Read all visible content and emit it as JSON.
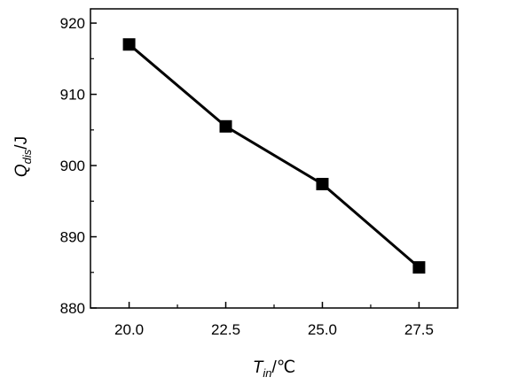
{
  "chart_data": {
    "type": "line",
    "x": [
      20.0,
      22.5,
      25.0,
      27.5
    ],
    "series": [
      {
        "values": [
          917.0,
          905.5,
          897.4,
          885.7
        ],
        "color": "#000000",
        "marker": "square"
      }
    ],
    "xlabel": {
      "main": "T",
      "sub": "in",
      "unit": "/℃"
    },
    "ylabel": {
      "main": "Q",
      "sub": "dis",
      "unit": "/J"
    },
    "xlim": [
      19.0,
      28.5
    ],
    "ylim": [
      880,
      922
    ],
    "xticks": [
      {
        "value": 20.0,
        "label": "20.0"
      },
      {
        "value": 22.5,
        "label": "22.5"
      },
      {
        "value": 25.0,
        "label": "25.0"
      },
      {
        "value": 27.5,
        "label": "27.5"
      }
    ],
    "xminor": [
      21.25,
      23.75,
      26.25
    ],
    "yticks": [
      {
        "value": 880,
        "label": "880"
      },
      {
        "value": 890,
        "label": "890"
      },
      {
        "value": 900,
        "label": "900"
      },
      {
        "value": 910,
        "label": "910"
      },
      {
        "value": 920,
        "label": "920"
      }
    ],
    "yminor": [
      885,
      895,
      905,
      915
    ],
    "grid": false,
    "legend": "none"
  }
}
